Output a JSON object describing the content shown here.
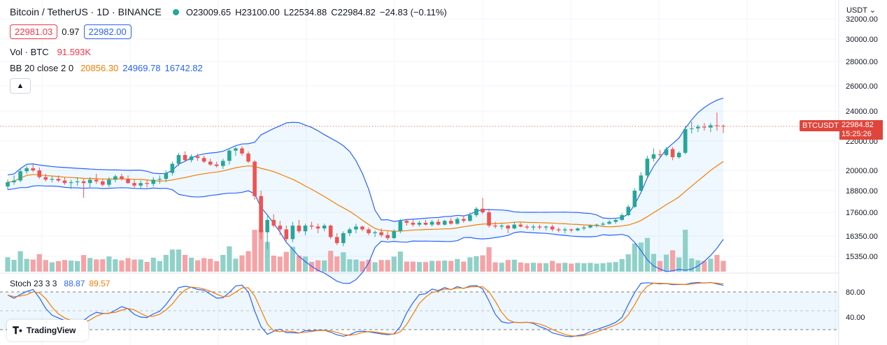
{
  "header": {
    "symbol_title": "Bitcoin / TetherUS · 1D · BINANCE",
    "open": "O23009.65",
    "high": "H23100.00",
    "low": "L22534.88",
    "close": "C22984.82",
    "change": "−24.83 (−0.11%)",
    "bid": "22981.03",
    "spread": "0.97",
    "ask": "22982.00"
  },
  "volume_legend": {
    "label": "Vol · BTC",
    "value": "91.593K"
  },
  "bb_legend": {
    "label": "BB 20 close 2 0",
    "basis": "20856.30",
    "upper": "24969.78",
    "lower": "16742.82"
  },
  "stoch_legend": {
    "label": "Stoch 23 3 3",
    "k": "88.87",
    "d": "89.57"
  },
  "axis": {
    "currency": "USDT ⌄",
    "price_tag_symbol": "BTCUSDT",
    "price_tag_price": "22984.82",
    "price_tag_timer": "15:25:26",
    "stoch_ticks": [
      "80.00",
      "40.00"
    ]
  },
  "branding": {
    "name": "TradingView"
  },
  "colors": {
    "up": "#26a69a",
    "down": "#ef5350",
    "vol_up": "#8fd1c8",
    "vol_down": "#f5a3a6",
    "bb": "#2962ff",
    "basis": "#f57c00",
    "stoch_k": "#2962ff",
    "stoch_d": "#f57c00"
  },
  "chart_data": {
    "type": "candlestick",
    "interval": "1D",
    "price_axis_ticks": [
      32000,
      30000,
      28000,
      26000,
      24000,
      22000,
      20000,
      18800,
      17600,
      16350,
      15350
    ],
    "price_axis_labels": [
      "32000.00",
      "30000.00",
      "28000.00",
      "26000.00",
      "24000.00",
      "22000.00",
      "20000.00",
      "18800.00",
      "17600.00",
      "16350.00",
      "15350.00"
    ],
    "last_price": 22984.82,
    "ohlc": [
      [
        19050,
        19450,
        18850,
        19300
      ],
      [
        19300,
        19700,
        19150,
        19400
      ],
      [
        19400,
        20100,
        19300,
        19950
      ],
      [
        19950,
        20300,
        19800,
        20150
      ],
      [
        20150,
        20400,
        19900,
        20000
      ],
      [
        20000,
        20200,
        19500,
        19600
      ],
      [
        19600,
        19800,
        19350,
        19450
      ],
      [
        19450,
        19650,
        19300,
        19500
      ],
      [
        19500,
        19700,
        19300,
        19400
      ],
      [
        19400,
        19600,
        19150,
        19250
      ],
      [
        19250,
        19450,
        18900,
        19300
      ],
      [
        19300,
        19600,
        19100,
        19350
      ],
      [
        19350,
        19500,
        18400,
        19250
      ],
      [
        19250,
        19600,
        19000,
        19450
      ],
      [
        19450,
        19800,
        19200,
        19350
      ],
      [
        19350,
        19500,
        19050,
        19150
      ],
      [
        19150,
        19600,
        19000,
        19450
      ],
      [
        19450,
        19750,
        19300,
        19650
      ],
      [
        19650,
        19800,
        19400,
        19500
      ],
      [
        19500,
        19700,
        19200,
        19250
      ],
      [
        19250,
        19450,
        18950,
        19100
      ],
      [
        19100,
        19400,
        18900,
        19250
      ],
      [
        19250,
        19400,
        19000,
        19200
      ],
      [
        19200,
        19600,
        19050,
        19450
      ],
      [
        19450,
        19700,
        19200,
        19500
      ],
      [
        19500,
        20000,
        19300,
        19850
      ],
      [
        19850,
        20600,
        19700,
        20450
      ],
      [
        20450,
        21200,
        20300,
        21050
      ],
      [
        21050,
        21300,
        20600,
        20700
      ],
      [
        20700,
        21100,
        20550,
        20950
      ],
      [
        20950,
        21150,
        20650,
        20850
      ],
      [
        20850,
        21000,
        20500,
        20600
      ],
      [
        20600,
        20800,
        20300,
        20400
      ],
      [
        20400,
        20600,
        20200,
        20300
      ],
      [
        20300,
        20800,
        20100,
        20650
      ],
      [
        20650,
        21500,
        20400,
        21350
      ],
      [
        21350,
        21600,
        21000,
        21500
      ],
      [
        21500,
        21650,
        21000,
        21150
      ],
      [
        21150,
        21300,
        20500,
        20600
      ],
      [
        20600,
        20700,
        18300,
        18500
      ],
      [
        18500,
        18800,
        16200,
        16550
      ],
      [
        16550,
        17400,
        15700,
        17200
      ],
      [
        17200,
        17500,
        16800,
        16900
      ],
      [
        16900,
        17150,
        16400,
        16700
      ],
      [
        16700,
        16900,
        16100,
        16200
      ],
      [
        16200,
        17100,
        16050,
        16900
      ],
      [
        16900,
        17200,
        16500,
        16600
      ],
      [
        16600,
        17000,
        16400,
        16900
      ],
      [
        16900,
        17100,
        16700,
        16850
      ],
      [
        16850,
        17000,
        16500,
        16750
      ],
      [
        16750,
        17000,
        16600,
        16900
      ],
      [
        16900,
        16950,
        16200,
        16300
      ],
      [
        16300,
        16500,
        15900,
        16000
      ],
      [
        16000,
        16600,
        15850,
        16500
      ],
      [
        16500,
        16800,
        16350,
        16700
      ],
      [
        16700,
        17000,
        16500,
        16850
      ],
      [
        16850,
        16900,
        16600,
        16700
      ],
      [
        16700,
        16800,
        16400,
        16500
      ],
      [
        16500,
        16650,
        16300,
        16550
      ],
      [
        16550,
        16750,
        16300,
        16400
      ],
      [
        16400,
        16600,
        16150,
        16250
      ],
      [
        16250,
        16700,
        16200,
        16600
      ],
      [
        16600,
        17250,
        16500,
        17150
      ],
      [
        17150,
        17250,
        16900,
        17050
      ],
      [
        17050,
        17200,
        16850,
        16950
      ],
      [
        16950,
        17150,
        16850,
        17050
      ],
      [
        17050,
        17200,
        16900,
        16950
      ],
      [
        16950,
        17200,
        16850,
        17100
      ],
      [
        17100,
        17250,
        16900,
        16950
      ],
      [
        16950,
        17200,
        16900,
        17150
      ],
      [
        17150,
        17300,
        16950,
        17000
      ],
      [
        17000,
        17350,
        16950,
        17250
      ],
      [
        17250,
        17400,
        17050,
        17150
      ],
      [
        17150,
        17600,
        17100,
        17450
      ],
      [
        17450,
        17900,
        17350,
        17800
      ],
      [
        17800,
        18400,
        17500,
        17600
      ],
      [
        17600,
        17800,
        16800,
        16900
      ],
      [
        16900,
        17100,
        16750,
        16850
      ],
      [
        16850,
        17000,
        16700,
        16900
      ],
      [
        16900,
        16950,
        16500,
        16750
      ],
      [
        16750,
        17100,
        16700,
        16950
      ],
      [
        16950,
        17050,
        16800,
        16850
      ],
      [
        16850,
        16950,
        16700,
        16800
      ],
      [
        16800,
        16950,
        16650,
        16850
      ],
      [
        16850,
        16950,
        16700,
        16800
      ],
      [
        16800,
        16900,
        16650,
        16850
      ],
      [
        16850,
        16950,
        16600,
        16700
      ],
      [
        16700,
        16800,
        16550,
        16650
      ],
      [
        16650,
        16800,
        16500,
        16700
      ],
      [
        16700,
        16750,
        16550,
        16650
      ],
      [
        16650,
        16800,
        16600,
        16750
      ],
      [
        16750,
        16900,
        16650,
        16800
      ],
      [
        16800,
        16950,
        16750,
        16900
      ],
      [
        16900,
        17000,
        16800,
        16950
      ],
      [
        16950,
        17100,
        16850,
        17000
      ],
      [
        17000,
        17200,
        16950,
        17100
      ],
      [
        17100,
        17300,
        17000,
        17200
      ],
      [
        17200,
        17550,
        17150,
        17450
      ],
      [
        17450,
        18000,
        17400,
        17900
      ],
      [
        17900,
        18950,
        17850,
        18800
      ],
      [
        18800,
        19900,
        18700,
        19700
      ],
      [
        19700,
        21000,
        19600,
        20800
      ],
      [
        20800,
        21500,
        20600,
        21100
      ],
      [
        21100,
        21400,
        20900,
        21050
      ],
      [
        21050,
        21600,
        20950,
        21450
      ],
      [
        21450,
        21600,
        20700,
        20900
      ],
      [
        20900,
        21300,
        20800,
        21200
      ],
      [
        21200,
        23000,
        21100,
        22800
      ],
      [
        22800,
        23300,
        22500,
        22850
      ],
      [
        22850,
        23100,
        22600,
        22950
      ],
      [
        22950,
        23200,
        22700,
        22900
      ],
      [
        22900,
        23200,
        22600,
        23050
      ],
      [
        23050,
        23900,
        22700,
        23000
      ],
      [
        23009.65,
        23100,
        22534.88,
        22984.82
      ]
    ],
    "bollinger": {
      "period": 20,
      "stddev": 2,
      "basis_last": 20856.3,
      "upper_last": 24969.78,
      "lower_last": 16742.82
    },
    "volume_last_btc": "91.593K",
    "stoch": {
      "k_period": 23,
      "smooth_k": 3,
      "smooth_d": 3,
      "k_last": 88.87,
      "d_last": 89.57,
      "upper_band": 80,
      "lower_band": 20
    }
  }
}
